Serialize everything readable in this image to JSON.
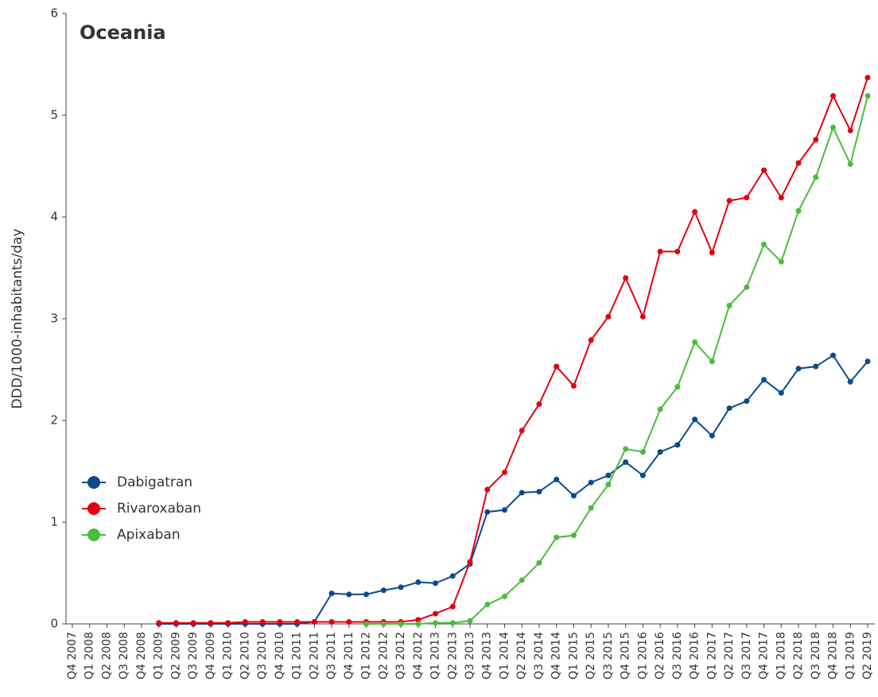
{
  "chart_data": {
    "type": "line",
    "title": "Oceania",
    "y_label": "DDD/1000-inhabitants/day",
    "categories": [
      "Q4 2007",
      "Q1 2008",
      "Q2 2008",
      "Q3 2008",
      "Q4 2008",
      "Q1 2009",
      "Q2 2009",
      "Q3 2009",
      "Q4 2009",
      "Q1 2010",
      "Q2 2010",
      "Q3 2010",
      "Q4 2010",
      "Q1 2011",
      "Q2 2011",
      "Q3 2011",
      "Q4 2011",
      "Q1 2012",
      "Q2 2012",
      "Q3 2012",
      "Q4 2012",
      "Q1 2013",
      "Q2 2013",
      "Q3 2013",
      "Q4 2013",
      "Q1 2014",
      "Q2 2014",
      "Q3 2014",
      "Q4 2014",
      "Q1 2015",
      "Q2 2015",
      "Q3 2015",
      "Q4 2015",
      "Q1 2016",
      "Q2 2016",
      "Q3 2016",
      "Q4 2016",
      "Q1 2017",
      "Q2 2017",
      "Q3 2017",
      "Q4 2017",
      "Q1 2018",
      "Q2 2018",
      "Q3 2018",
      "Q4 2018",
      "Q1 2019",
      "Q2 2019"
    ],
    "series": [
      {
        "name": "Dabigatran",
        "color": "#0b4a8e",
        "values": [
          null,
          null,
          null,
          null,
          null,
          0,
          0,
          0,
          0,
          0,
          0,
          0,
          0,
          0,
          0.02,
          0.3,
          0.29,
          0.29,
          0.33,
          0.36,
          0.41,
          0.4,
          0.47,
          0.59,
          1.1,
          1.12,
          1.29,
          1.3,
          1.42,
          1.26,
          1.39,
          1.46,
          1.59,
          1.46,
          1.69,
          1.76,
          2.01,
          1.85,
          2.12,
          2.19,
          2.4,
          2.27,
          2.51,
          2.53,
          2.64,
          2.38,
          2.58
        ]
      },
      {
        "name": "Rivaroxaban",
        "color": "#e3000f",
        "values": [
          null,
          null,
          null,
          null,
          null,
          0.01,
          0.01,
          0.01,
          0.01,
          0.01,
          0.02,
          0.02,
          0.02,
          0.02,
          0.02,
          0.02,
          0.02,
          0.02,
          0.02,
          0.02,
          0.04,
          0.1,
          0.17,
          0.61,
          1.32,
          1.49,
          1.9,
          2.16,
          2.53,
          2.34,
          2.79,
          3.02,
          3.4,
          3.02,
          3.66,
          3.66,
          4.05,
          3.65,
          4.16,
          4.19,
          4.46,
          4.19,
          4.53,
          4.76,
          5.19,
          4.85,
          5.37
        ]
      },
      {
        "name": "Apixaban",
        "color": "#4cbb3c",
        "values": [
          null,
          null,
          null,
          null,
          null,
          null,
          null,
          null,
          null,
          null,
          null,
          null,
          null,
          null,
          null,
          null,
          null,
          0,
          0,
          0,
          0,
          0.01,
          0.01,
          0.03,
          0.19,
          0.27,
          0.43,
          0.6,
          0.85,
          0.87,
          1.14,
          1.37,
          1.72,
          1.69,
          2.11,
          2.33,
          2.77,
          2.58,
          3.13,
          3.31,
          3.73,
          3.56,
          4.06,
          4.39,
          4.88,
          4.52,
          5.19
        ]
      }
    ],
    "ylim": [
      0,
      6
    ],
    "yticks": [
      0,
      1,
      2,
      3,
      4,
      5,
      6
    ],
    "legend": "left"
  }
}
